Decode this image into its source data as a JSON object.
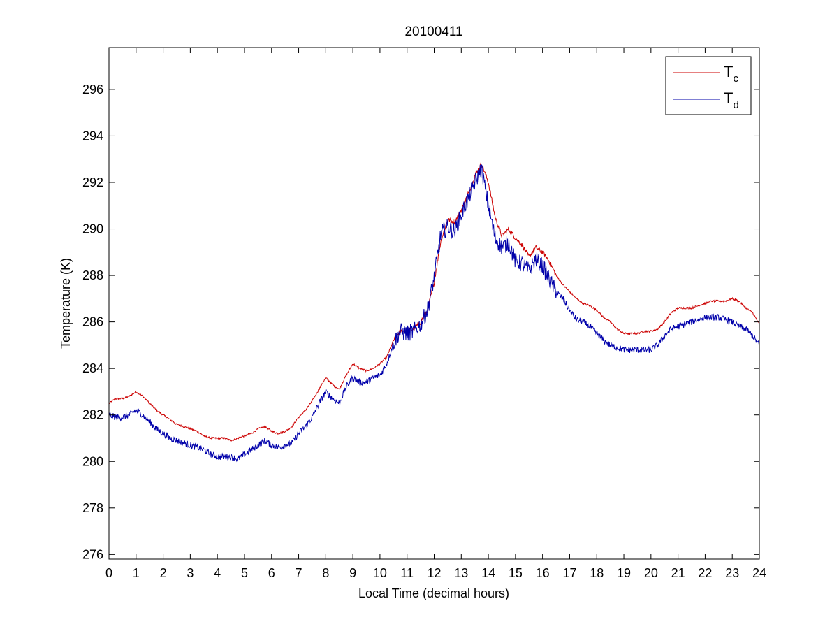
{
  "chart_data": {
    "type": "line",
    "title": "20100411",
    "xlabel": "Local Time (decimal hours)",
    "ylabel": "Temperature (K)",
    "xlim": [
      0,
      24
    ],
    "ylim": [
      275.8,
      297.8
    ],
    "x_ticks": [
      0,
      1,
      2,
      3,
      4,
      5,
      6,
      7,
      8,
      9,
      10,
      11,
      12,
      13,
      14,
      15,
      16,
      17,
      18,
      19,
      20,
      21,
      22,
      23,
      24
    ],
    "y_ticks": [
      276,
      278,
      280,
      282,
      284,
      286,
      288,
      290,
      292,
      294,
      296
    ],
    "grid": false,
    "legend_position": "top-right",
    "series": [
      {
        "name": "T",
        "subscript": "c",
        "color": "#cc0000",
        "x": [
          0,
          0.25,
          0.5,
          0.75,
          1,
          1.25,
          1.5,
          1.75,
          2,
          2.25,
          2.5,
          2.75,
          3,
          3.25,
          3.5,
          3.75,
          4,
          4.25,
          4.5,
          4.75,
          5,
          5.25,
          5.5,
          5.75,
          6,
          6.25,
          6.5,
          6.75,
          7,
          7.25,
          7.5,
          7.75,
          8,
          8.25,
          8.5,
          8.75,
          9,
          9.25,
          9.5,
          9.75,
          10,
          10.25,
          10.5,
          10.75,
          11,
          11.25,
          11.5,
          11.75,
          12,
          12.25,
          12.5,
          12.75,
          13,
          13.25,
          13.5,
          13.75,
          14,
          14.25,
          14.5,
          14.75,
          15,
          15.25,
          15.5,
          15.75,
          16,
          16.25,
          16.5,
          16.75,
          17,
          17.25,
          17.5,
          17.75,
          18,
          18.25,
          18.5,
          18.75,
          19,
          19.25,
          19.5,
          19.75,
          20,
          20.25,
          20.5,
          20.75,
          21,
          21.25,
          21.5,
          21.75,
          22,
          22.25,
          22.5,
          22.75,
          23,
          23.25,
          23.5,
          23.75,
          24
        ],
        "values": [
          282.5,
          282.7,
          282.7,
          282.8,
          283.0,
          282.8,
          282.5,
          282.2,
          282.0,
          281.8,
          281.6,
          281.5,
          281.4,
          281.3,
          281.1,
          281.0,
          281.0,
          281.0,
          280.9,
          281.0,
          281.1,
          281.2,
          281.4,
          281.5,
          281.3,
          281.2,
          281.3,
          281.5,
          281.9,
          282.2,
          282.6,
          283.1,
          283.6,
          283.3,
          283.1,
          283.7,
          284.2,
          284.0,
          283.9,
          284.0,
          284.2,
          284.5,
          285.2,
          285.6,
          285.6,
          285.7,
          286.0,
          286.5,
          287.7,
          289.5,
          290.4,
          290.3,
          290.8,
          291.5,
          292.3,
          292.8,
          292.0,
          290.5,
          289.7,
          290.0,
          289.6,
          289.3,
          288.8,
          289.2,
          289.0,
          288.6,
          288.0,
          287.6,
          287.3,
          287.0,
          286.8,
          286.7,
          286.5,
          286.2,
          286.0,
          285.7,
          285.5,
          285.5,
          285.5,
          285.6,
          285.6,
          285.7,
          286.0,
          286.4,
          286.6,
          286.6,
          286.6,
          286.7,
          286.8,
          286.9,
          286.9,
          286.9,
          287.0,
          286.9,
          286.6,
          286.4,
          285.9
        ],
        "noise": 0.04
      },
      {
        "name": "T",
        "subscript": "d",
        "color": "#0000aa",
        "x": [
          0,
          0.25,
          0.5,
          0.75,
          1,
          1.25,
          1.5,
          1.75,
          2,
          2.25,
          2.5,
          2.75,
          3,
          3.25,
          3.5,
          3.75,
          4,
          4.25,
          4.5,
          4.75,
          5,
          5.25,
          5.5,
          5.75,
          6,
          6.25,
          6.5,
          6.75,
          7,
          7.25,
          7.5,
          7.75,
          8,
          8.25,
          8.5,
          8.75,
          9,
          9.25,
          9.5,
          9.75,
          10,
          10.25,
          10.5,
          10.75,
          11,
          11.25,
          11.5,
          11.75,
          12,
          12.25,
          12.5,
          12.75,
          13,
          13.25,
          13.5,
          13.75,
          14,
          14.25,
          14.5,
          14.75,
          15,
          15.25,
          15.5,
          15.75,
          16,
          16.25,
          16.5,
          16.75,
          17,
          17.25,
          17.5,
          17.75,
          18,
          18.25,
          18.5,
          18.75,
          19,
          19.25,
          19.5,
          19.75,
          20,
          20.25,
          20.5,
          20.75,
          21,
          21.25,
          21.5,
          21.75,
          22,
          22.25,
          22.5,
          22.75,
          23,
          23.25,
          23.5,
          23.75,
          24
        ],
        "values": [
          282.0,
          281.9,
          281.9,
          282.0,
          282.2,
          282.0,
          281.7,
          281.4,
          281.2,
          281.0,
          280.9,
          280.8,
          280.7,
          280.6,
          280.5,
          280.3,
          280.2,
          280.2,
          280.2,
          280.1,
          280.3,
          280.5,
          280.7,
          280.9,
          280.7,
          280.6,
          280.7,
          280.8,
          281.2,
          281.5,
          281.9,
          282.5,
          283.0,
          282.7,
          282.5,
          283.2,
          283.6,
          283.4,
          283.4,
          283.6,
          283.7,
          284.2,
          285.1,
          285.6,
          285.5,
          285.6,
          285.9,
          286.5,
          287.9,
          289.8,
          290.1,
          289.9,
          290.6,
          291.3,
          292.0,
          292.6,
          291.0,
          289.6,
          289.2,
          289.4,
          288.6,
          288.5,
          288.2,
          288.7,
          288.4,
          287.8,
          287.3,
          287.0,
          286.5,
          286.1,
          286.0,
          285.8,
          285.5,
          285.2,
          285.0,
          284.9,
          284.8,
          284.8,
          284.8,
          284.8,
          284.8,
          285.0,
          285.4,
          285.7,
          285.8,
          285.9,
          286.0,
          286.1,
          286.2,
          286.2,
          286.2,
          286.1,
          286.0,
          285.8,
          285.7,
          285.4,
          285.0
        ],
        "noise": 0.14
      }
    ]
  }
}
